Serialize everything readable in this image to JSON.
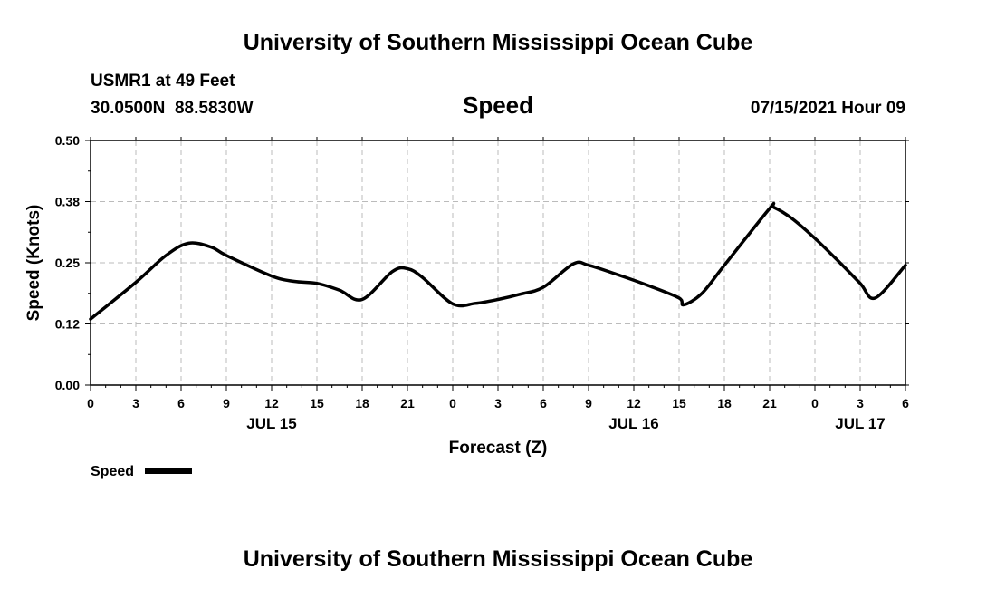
{
  "header": {
    "title": "University of Southern Mississippi Ocean Cube",
    "station": "USMR1 at 49 Feet",
    "coords": "30.0500N  88.5830W",
    "variable": "Speed",
    "datetime": "07/15/2021 Hour 09"
  },
  "footer": {
    "title": "University of Southern Mississippi Ocean Cube"
  },
  "chart_data": {
    "type": "line",
    "title": "Speed",
    "xlabel": "Forecast (Z)",
    "ylabel": "Speed (Knots)",
    "ylim": [
      0,
      0.5
    ],
    "xlim": [
      0,
      54
    ],
    "y_ticks": [
      "0.00",
      "0.12",
      "0.25",
      "0.38",
      "0.50"
    ],
    "y_tick_values": [
      0,
      0.125,
      0.25,
      0.375,
      0.5
    ],
    "x_ticks": [
      "0",
      "3",
      "6",
      "9",
      "12",
      "15",
      "18",
      "21",
      "0",
      "3",
      "6",
      "9",
      "12",
      "15",
      "18",
      "21",
      "0",
      "3",
      "6"
    ],
    "date_labels": [
      {
        "label": "JUL 15",
        "at_hour": 12
      },
      {
        "label": "JUL 16",
        "at_hour": 36
      },
      {
        "label": "JUL 17",
        "at_hour": 51
      }
    ],
    "grid": true,
    "legend": {
      "position": "bottom-left",
      "entries": [
        "Speed"
      ]
    },
    "series": [
      {
        "name": "Speed",
        "color": "#000000",
        "x": [
          0,
          3,
          5,
          6.5,
          8,
          9,
          12,
          13.5,
          15,
          16.5,
          18,
          20,
          21,
          22,
          24,
          25.5,
          27,
          28.5,
          30,
          32,
          33,
          35,
          37,
          39,
          39.3,
          40.5,
          42,
          45,
          45.3,
          46.5,
          48,
          49.5,
          51,
          52,
          54
        ],
        "y": [
          0.135,
          0.21,
          0.265,
          0.29,
          0.282,
          0.265,
          0.223,
          0.212,
          0.208,
          0.194,
          0.175,
          0.232,
          0.238,
          0.22,
          0.166,
          0.167,
          0.175,
          0.186,
          0.2,
          0.248,
          0.245,
          0.225,
          0.203,
          0.178,
          0.164,
          0.187,
          0.245,
          0.361,
          0.363,
          0.34,
          0.3,
          0.255,
          0.208,
          0.178,
          0.245
        ]
      }
    ]
  }
}
